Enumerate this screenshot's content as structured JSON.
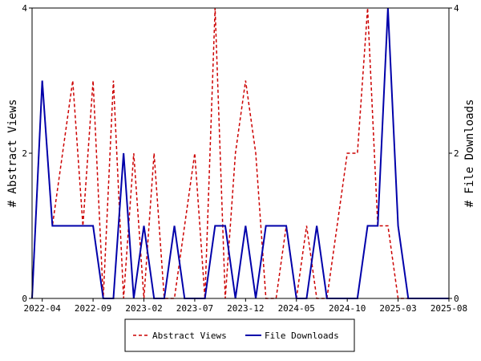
{
  "chart_data": {
    "type": "line",
    "x": [
      "2022-03",
      "2022-04",
      "2022-05",
      "2022-06",
      "2022-07",
      "2022-08",
      "2022-09",
      "2022-10",
      "2022-11",
      "2022-12",
      "2023-01",
      "2023-02",
      "2023-03",
      "2023-04",
      "2023-05",
      "2023-06",
      "2023-07",
      "2023-08",
      "2023-09",
      "2023-10",
      "2023-11",
      "2023-12",
      "2024-01",
      "2024-02",
      "2024-03",
      "2024-04",
      "2024-05",
      "2024-06",
      "2024-07",
      "2024-08",
      "2024-09",
      "2024-10",
      "2024-11",
      "2024-12",
      "2025-01",
      "2025-02",
      "2025-03",
      "2025-04",
      "2025-05",
      "2025-06",
      "2025-07",
      "2025-08"
    ],
    "x_tick_labels": [
      "2022-04",
      "2022-09",
      "2023-02",
      "2023-07",
      "2023-12",
      "2024-05",
      "2024-10",
      "2025-03",
      "2025-08"
    ],
    "x_tick_positions": [
      "2022-04",
      "2022-09",
      "2023-02",
      "2023-07",
      "2023-12",
      "2024-05",
      "2024-10",
      "2025-03",
      "2025-08"
    ],
    "series": [
      {
        "name": "Abstract Views",
        "color": "#cc0000",
        "style": "dashed",
        "axis": "left",
        "values": [
          0,
          3,
          1,
          2,
          3,
          1,
          3,
          0,
          3,
          0,
          2,
          0,
          2,
          0,
          0,
          1,
          2,
          0,
          4,
          0,
          2,
          3,
          2,
          0,
          0,
          1,
          0,
          1,
          0,
          0,
          1,
          2,
          2,
          4,
          1,
          1,
          0,
          0,
          0,
          0,
          0,
          0
        ]
      },
      {
        "name": "File Downloads",
        "color": "#0000aa",
        "style": "solid",
        "axis": "right",
        "values": [
          0,
          3,
          1,
          1,
          1,
          1,
          1,
          0,
          0,
          2,
          0,
          1,
          0,
          0,
          1,
          0,
          0,
          0,
          1,
          1,
          0,
          1,
          0,
          1,
          1,
          1,
          0,
          0,
          1,
          0,
          0,
          0,
          0,
          1,
          1,
          4,
          1,
          0,
          0,
          0,
          0,
          0
        ]
      }
    ],
    "ylabel_left": "# Abstract Views",
    "ylabel_right": "# File Downloads",
    "ylim": [
      0,
      4
    ],
    "y_ticks": [
      0,
      2,
      4
    ],
    "grid": false,
    "legend_position": "bottom-center"
  }
}
